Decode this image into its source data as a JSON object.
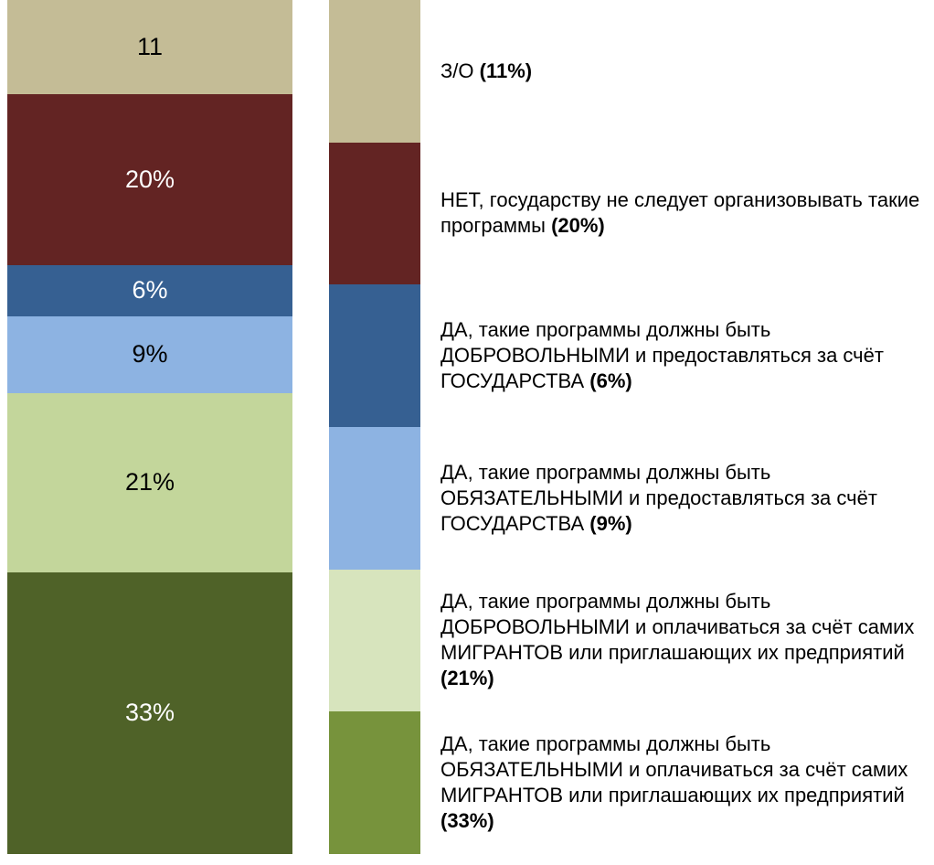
{
  "chart_data": {
    "type": "stacked-bar",
    "series": [
      {
        "name": "З/О",
        "color": "#c4bc96",
        "legend_color": "#c4bc96",
        "text_color": "#000000",
        "values": [
          11
        ],
        "value_labels": [
          "11"
        ],
        "legend_label": "(11%)"
      },
      {
        "name": "НЕТ, государству не следует организовывать такие программы",
        "color": "#632423",
        "legend_color": "#632423",
        "text_color": "#ffffff",
        "values": [
          20
        ],
        "value_labels": [
          "20%"
        ],
        "legend_label": "(20%)"
      },
      {
        "name": "ДА, такие программы должны быть ДОБРОВОЛЬНЫМИ и предоставляться за счёт ГОСУДАРСТВА",
        "color": "#366092",
        "legend_color": "#366092",
        "text_color": "#ffffff",
        "values": [
          6
        ],
        "value_labels": [
          "6%"
        ],
        "legend_label": "(6%)"
      },
      {
        "name": "ДА, такие программы должны быть ОБЯЗАТЕЛЬНЫМИ и предоставляться за счёт ГОСУДАРСТВА",
        "color": "#8db3e2",
        "legend_color": "#8db3e2",
        "text_color": "#000000",
        "values": [
          9
        ],
        "value_labels": [
          "9%"
        ],
        "legend_label": "(9%)"
      },
      {
        "name": "ДА, такие программы должны быть ДОБРОВОЛЬНЫМИ и оплачиваться за счёт самих МИГРАНТОВ или приглашающих их предприятий",
        "color": "#c3d69b",
        "legend_color": "#d7e4bd",
        "text_color": "#000000",
        "values": [
          21
        ],
        "value_labels": [
          "21%"
        ],
        "legend_label": "(21%)"
      },
      {
        "name": "ДА, такие программы должны быть ОБЯЗАТЕЛЬНЫМИ и оплачиваться за счёт самих МИГРАНТОВ или приглашающих их предприятий",
        "color": "#4f6228",
        "legend_color": "#77933c",
        "text_color": "#ffffff",
        "values": [
          33
        ],
        "value_labels": [
          "33%"
        ],
        "legend_label": "(33%)"
      }
    ]
  }
}
